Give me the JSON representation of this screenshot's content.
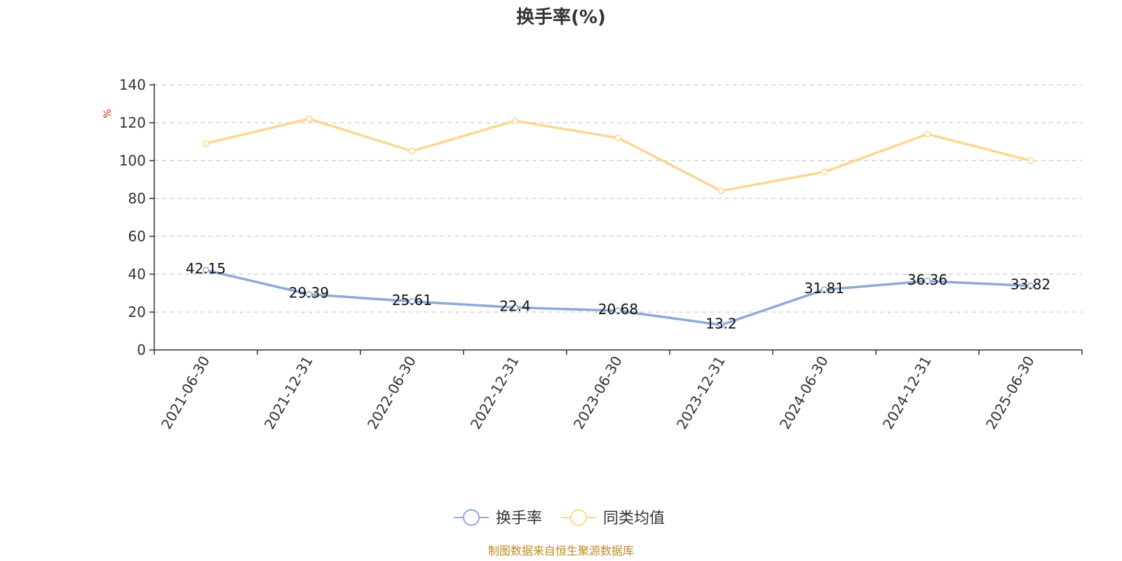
{
  "title": "换手率(%)",
  "source_note": "制图数据来自恒生聚源数据库",
  "colors": {
    "series_turnover": "#8eaad8",
    "series_peer_avg": "#fbd793",
    "grid": "#cccccc",
    "axis": "#333333",
    "unit": "#e02020",
    "source": "#c08a20"
  },
  "chart_data": {
    "type": "line",
    "title": "换手率(%)",
    "ylabel": "%",
    "xlabel": "",
    "categories": [
      "2021-06-30",
      "2021-12-31",
      "2022-06-30",
      "2022-12-31",
      "2023-06-30",
      "2023-12-31",
      "2024-06-30",
      "2024-12-31",
      "2025-06-30"
    ],
    "ylim": [
      0,
      140
    ],
    "yticks": [
      0,
      20,
      40,
      60,
      80,
      100,
      120,
      140
    ],
    "grid": true,
    "legend_position": "bottom-center",
    "series": [
      {
        "name": "换手率",
        "values": [
          42.15,
          29.39,
          25.61,
          22.4,
          20.68,
          13.2,
          31.81,
          36.36,
          33.82
        ],
        "labels": [
          "42.15",
          "29.39",
          "25.61",
          "22.4",
          "20.68",
          "13.2",
          "31.81",
          "36.36",
          "33.82"
        ],
        "color": "#8eaad8",
        "show_labels": true
      },
      {
        "name": "同类均值",
        "values": [
          109,
          122,
          105,
          121,
          112,
          84,
          94,
          114,
          100
        ],
        "color": "#fbd793",
        "show_labels": false
      }
    ]
  }
}
